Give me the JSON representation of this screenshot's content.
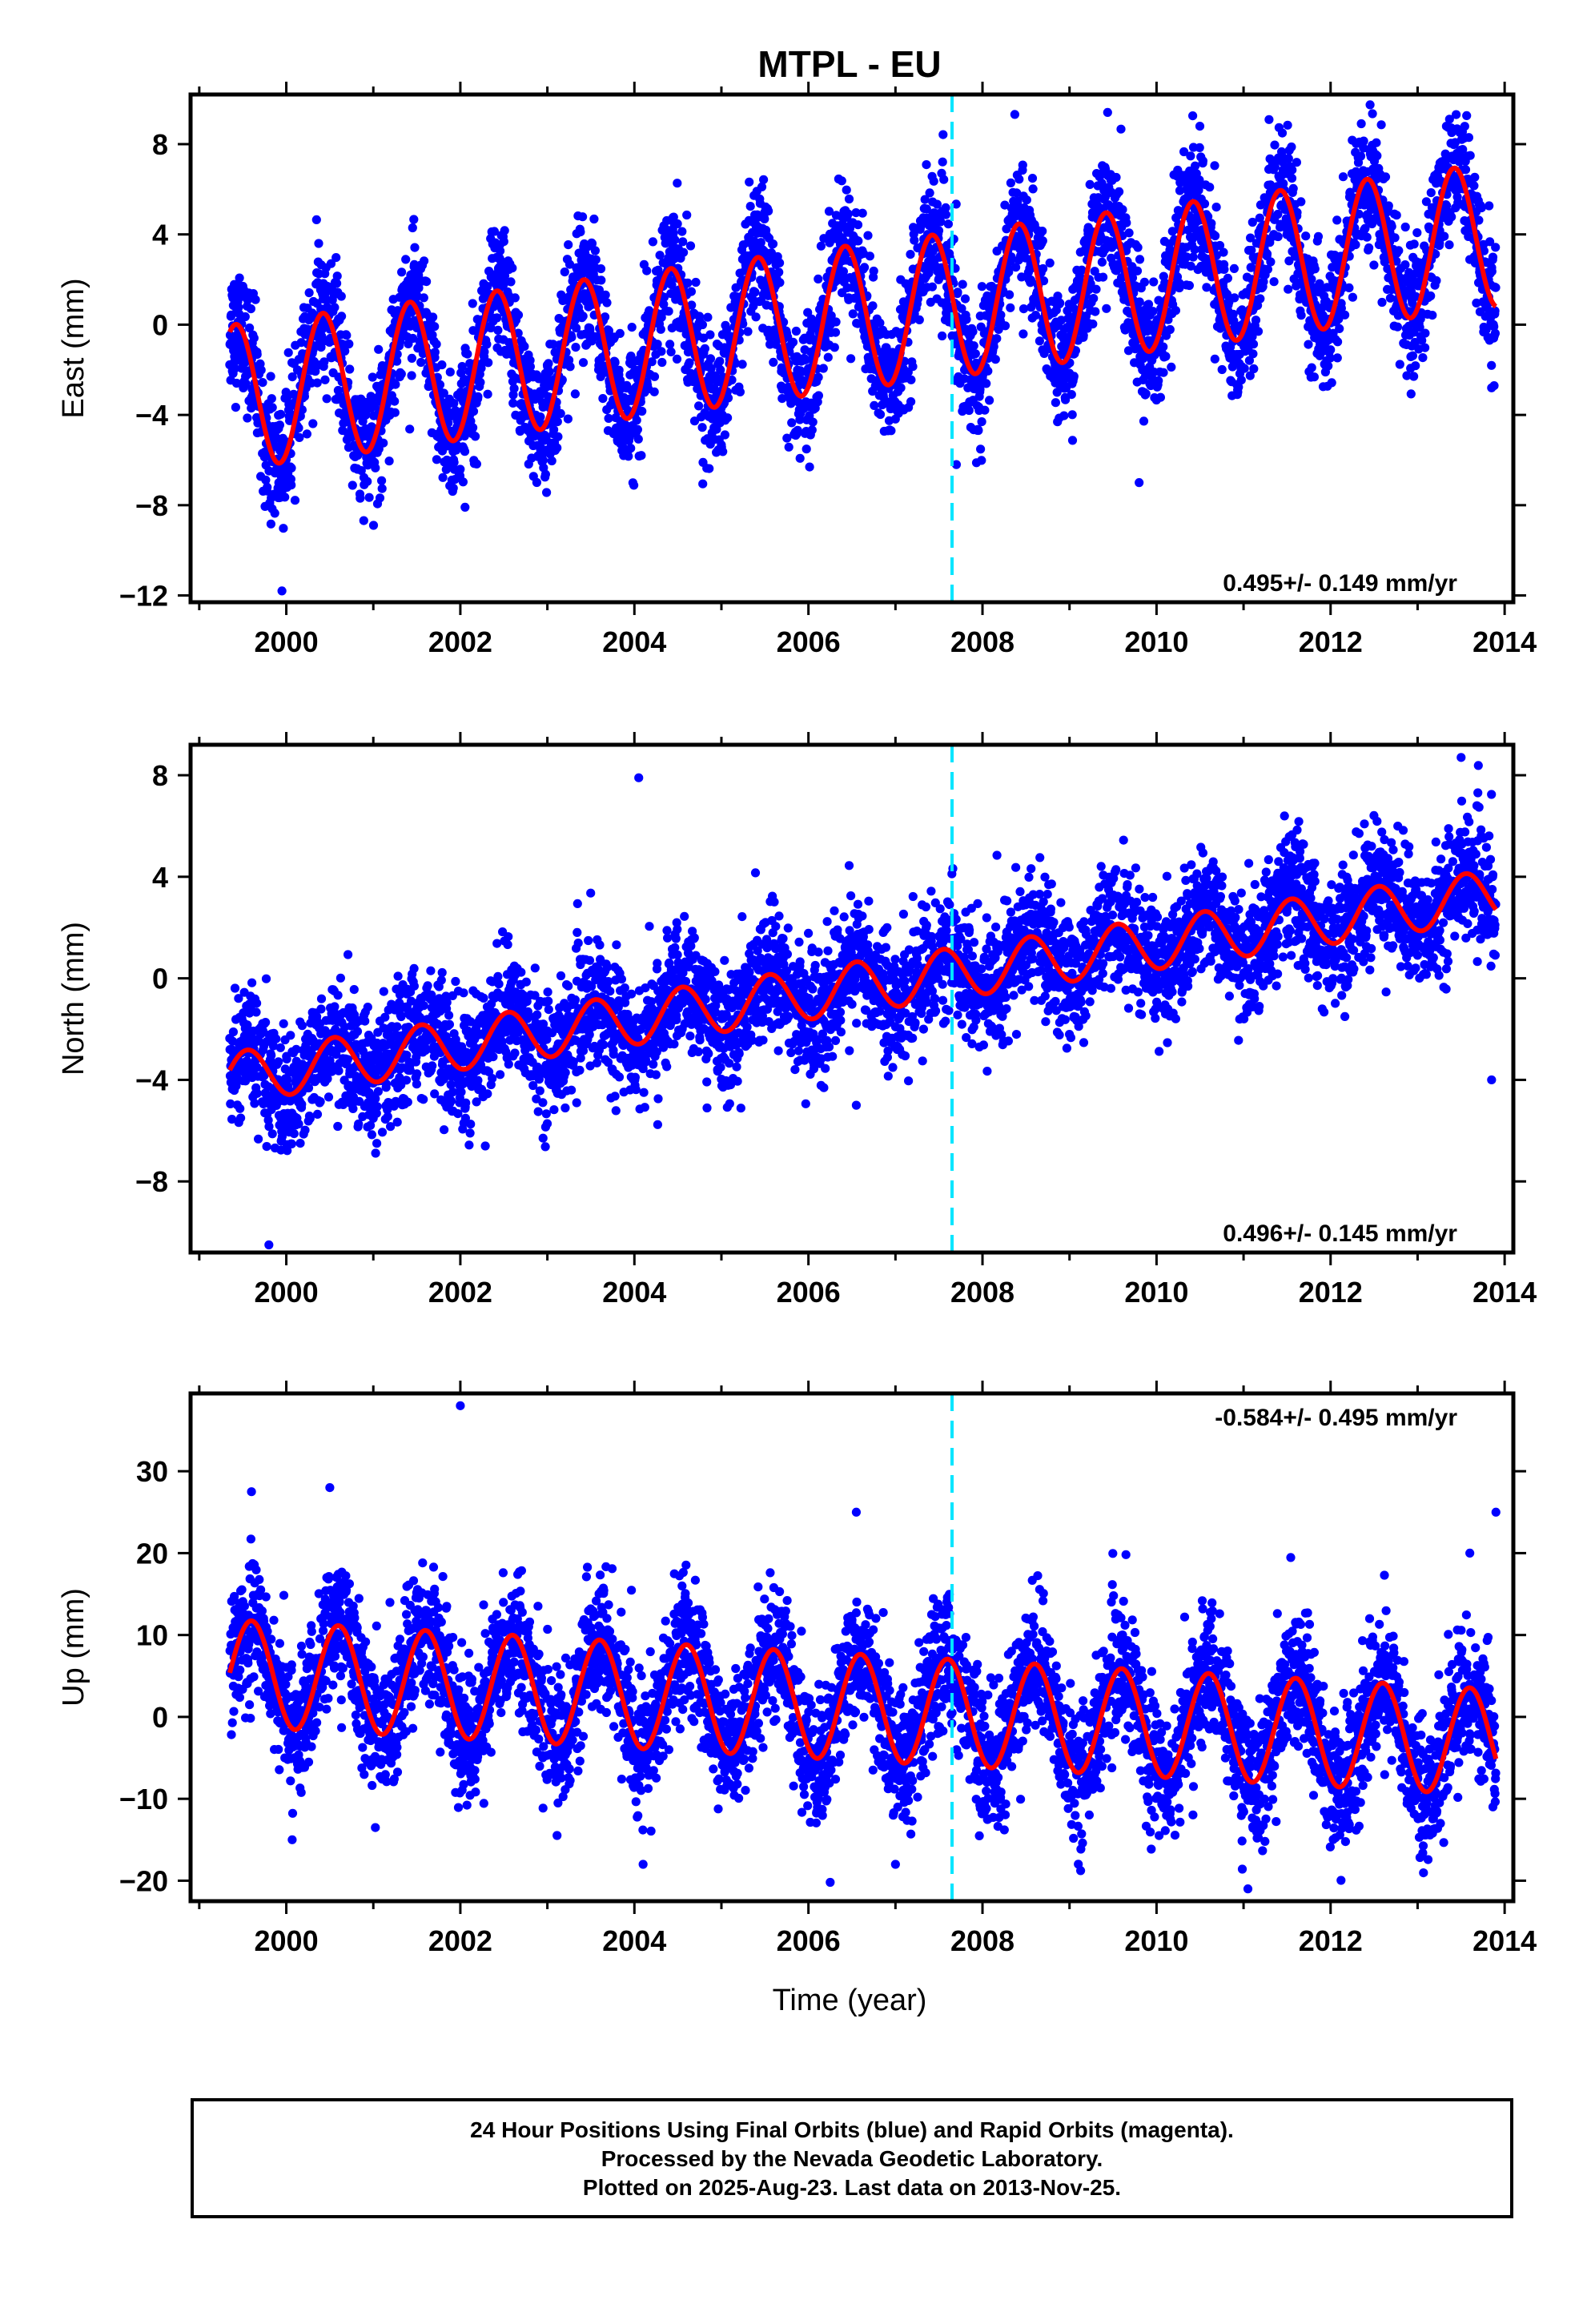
{
  "title": "MTPL - EU",
  "xlabel": "Time (year)",
  "colors": {
    "points": "#0000ff",
    "fit": "#ff0000",
    "break_line": "#00e5ff",
    "frame": "#000000"
  },
  "caption": {
    "line1": "24 Hour Positions Using Final Orbits (blue) and Rapid Orbits (magenta).",
    "line2": "Processed by the Nevada Geodetic Laboratory.",
    "line3": "Plotted on 2025-Aug-23. Last data on 2013-Nov-25."
  },
  "chart_data": [
    {
      "type": "scatter",
      "ylabel": "East (mm)",
      "xlim": [
        1998.9,
        2014.1
      ],
      "ylim": [
        -12.3,
        10.2
      ],
      "xticks": [
        2000,
        2002,
        2004,
        2006,
        2008,
        2010,
        2012,
        2014
      ],
      "yticks": [
        -12,
        -8,
        -4,
        0,
        4,
        8
      ],
      "rate_label": "0.495+/- 0.149 mm/yr",
      "break_year": 2007.65,
      "data_range": [
        1999.35,
        2013.9
      ],
      "fit": {
        "offset_2000": -2.9,
        "slope_mm_per_yr": 0.495,
        "annual_amplitude": 3.2,
        "annual_peak": 0.42,
        "scatter_sd": 1.4
      },
      "fit_curve": [
        {
          "x": 1999.4,
          "y": -0.5
        },
        {
          "x": 1999.9,
          "y": -6.1
        },
        {
          "x": 2000.4,
          "y": 0.4
        },
        {
          "x": 2000.9,
          "y": -5.6
        },
        {
          "x": 2001.4,
          "y": 0.9
        },
        {
          "x": 2001.9,
          "y": -5.1
        },
        {
          "x": 2002.4,
          "y": 1.4
        },
        {
          "x": 2002.9,
          "y": -4.6
        },
        {
          "x": 2003.4,
          "y": 1.9
        },
        {
          "x": 2003.9,
          "y": -4.1
        },
        {
          "x": 2004.4,
          "y": 2.4
        },
        {
          "x": 2004.9,
          "y": -3.6
        },
        {
          "x": 2005.4,
          "y": 2.9
        },
        {
          "x": 2005.9,
          "y": -3.1
        },
        {
          "x": 2006.4,
          "y": 3.4
        },
        {
          "x": 2006.9,
          "y": -2.6
        },
        {
          "x": 2007.4,
          "y": 3.9
        },
        {
          "x": 2007.9,
          "y": -2.3
        },
        {
          "x": 2008.4,
          "y": 4.2
        },
        {
          "x": 2008.9,
          "y": -1.8
        },
        {
          "x": 2009.4,
          "y": 4.7
        },
        {
          "x": 2009.9,
          "y": -1.3
        },
        {
          "x": 2010.4,
          "y": 5.2
        },
        {
          "x": 2010.9,
          "y": -0.8
        },
        {
          "x": 2011.4,
          "y": 5.7
        },
        {
          "x": 2011.9,
          "y": -0.3
        },
        {
          "x": 2012.4,
          "y": 6.2
        },
        {
          "x": 2012.9,
          "y": 0.1
        },
        {
          "x": 2013.4,
          "y": 6.6
        },
        {
          "x": 2013.9,
          "y": 0.4
        }
      ],
      "outliers": [
        {
          "x": 1999.95,
          "y": -11.8
        },
        {
          "x": 2009.8,
          "y": -7.0
        },
        {
          "x": 2007.7,
          "y": -6.2
        },
        {
          "x": 2013.85,
          "y": -2.8
        }
      ]
    },
    {
      "type": "scatter",
      "ylabel": "North (mm)",
      "xlim": [
        1998.9,
        2014.1
      ],
      "ylim": [
        -10.8,
        9.2
      ],
      "xticks": [
        2000,
        2002,
        2004,
        2006,
        2008,
        2010,
        2012,
        2014
      ],
      "yticks": [
        -8,
        -4,
        0,
        4,
        8
      ],
      "rate_label": "0.496+/- 0.145 mm/yr",
      "break_year": 2007.65,
      "data_range": [
        1999.35,
        2013.9
      ],
      "fit": {
        "offset_2000": -3.6,
        "slope_mm_per_yr": 0.496,
        "annual_amplitude": 1.0,
        "annual_peak": 0.55,
        "scatter_sd": 1.2
      },
      "fit_curve": [
        {
          "x": 1999.5,
          "y": -2.5
        },
        {
          "x": 2000.0,
          "y": -4.8
        },
        {
          "x": 2000.5,
          "y": -2.1
        },
        {
          "x": 2001.0,
          "y": -4.4
        },
        {
          "x": 2001.5,
          "y": -1.7
        },
        {
          "x": 2002.0,
          "y": -3.6
        },
        {
          "x": 2002.5,
          "y": -1.1
        },
        {
          "x": 2003.0,
          "y": -3.2
        },
        {
          "x": 2003.5,
          "y": -0.6
        },
        {
          "x": 2004.0,
          "y": -2.6
        },
        {
          "x": 2004.5,
          "y": -0.2
        },
        {
          "x": 2005.0,
          "y": -2.2
        },
        {
          "x": 2005.5,
          "y": 0.4
        },
        {
          "x": 2006.0,
          "y": -1.8
        },
        {
          "x": 2006.5,
          "y": 0.8
        },
        {
          "x": 2007.0,
          "y": -1.3
        },
        {
          "x": 2007.5,
          "y": 1.3
        },
        {
          "x": 2008.0,
          "y": -0.6
        },
        {
          "x": 2008.5,
          "y": 2.1
        },
        {
          "x": 2009.0,
          "y": 0.1
        },
        {
          "x": 2009.5,
          "y": 2.7
        },
        {
          "x": 2010.0,
          "y": 0.6
        },
        {
          "x": 2010.5,
          "y": 3.3
        },
        {
          "x": 2011.0,
          "y": 1.3
        },
        {
          "x": 2011.5,
          "y": 3.8
        },
        {
          "x": 2012.0,
          "y": 1.9
        },
        {
          "x": 2012.5,
          "y": 4.3
        },
        {
          "x": 2013.0,
          "y": 2.4
        },
        {
          "x": 2013.5,
          "y": 4.8
        },
        {
          "x": 2013.9,
          "y": 2.6
        }
      ],
      "outliers": [
        {
          "x": 2004.05,
          "y": 7.9
        },
        {
          "x": 2013.5,
          "y": 8.7
        },
        {
          "x": 1999.8,
          "y": -10.5
        },
        {
          "x": 2013.85,
          "y": -4.0
        },
        {
          "x": 2006.55,
          "y": -5.0
        }
      ]
    },
    {
      "type": "scatter",
      "ylabel": "Up (mm)",
      "xlim": [
        1998.9,
        2014.1
      ],
      "ylim": [
        -22.5,
        39.5
      ],
      "xticks": [
        2000,
        2002,
        2004,
        2006,
        2008,
        2010,
        2012,
        2014
      ],
      "yticks": [
        -20,
        -10,
        0,
        10,
        20,
        30
      ],
      "rate_label": "-0.584+/- 0.495 mm/yr",
      "break_year": 2007.65,
      "data_range": [
        1999.35,
        2013.9
      ],
      "fit": {
        "offset_2000": 5.0,
        "slope_mm_per_yr": -0.584,
        "annual_amplitude": 6.5,
        "annual_peak": 0.6,
        "scatter_sd": 4.0
      },
      "fit_curve": [
        {
          "x": 1999.4,
          "y": 4.0
        },
        {
          "x": 1999.6,
          "y": 11.2
        },
        {
          "x": 2000.1,
          "y": -1.3
        },
        {
          "x": 2000.6,
          "y": 10.6
        },
        {
          "x": 2001.1,
          "y": -1.8
        },
        {
          "x": 2001.6,
          "y": 10.0
        },
        {
          "x": 2002.1,
          "y": -2.4
        },
        {
          "x": 2002.6,
          "y": 9.5
        },
        {
          "x": 2003.1,
          "y": -3.0
        },
        {
          "x": 2003.6,
          "y": 8.9
        },
        {
          "x": 2004.1,
          "y": -3.6
        },
        {
          "x": 2004.6,
          "y": 8.3
        },
        {
          "x": 2005.1,
          "y": -4.2
        },
        {
          "x": 2005.6,
          "y": 7.7
        },
        {
          "x": 2006.1,
          "y": -4.8
        },
        {
          "x": 2006.6,
          "y": 7.1
        },
        {
          "x": 2007.1,
          "y": -5.4
        },
        {
          "x": 2007.6,
          "y": 6.5
        },
        {
          "x": 2008.1,
          "y": -5.9
        },
        {
          "x": 2008.6,
          "y": 6.0
        },
        {
          "x": 2009.1,
          "y": -6.5
        },
        {
          "x": 2009.6,
          "y": 5.4
        },
        {
          "x": 2010.1,
          "y": -7.1
        },
        {
          "x": 2010.6,
          "y": 4.8
        },
        {
          "x": 2011.1,
          "y": -7.7
        },
        {
          "x": 2011.6,
          "y": 4.2
        },
        {
          "x": 2012.1,
          "y": -8.3
        },
        {
          "x": 2012.6,
          "y": 3.6
        },
        {
          "x": 2013.1,
          "y": -8.9
        },
        {
          "x": 2013.6,
          "y": 3.0
        },
        {
          "x": 2013.9,
          "y": -6.5
        }
      ],
      "outliers": [
        {
          "x": 2002.0,
          "y": 38.0
        },
        {
          "x": 2000.5,
          "y": 28.0
        },
        {
          "x": 1999.6,
          "y": 27.5
        },
        {
          "x": 2006.55,
          "y": 25.0
        },
        {
          "x": 2013.9,
          "y": 25.0
        },
        {
          "x": 2013.6,
          "y": 20.0
        },
        {
          "x": 2011.05,
          "y": -21.0
        },
        {
          "x": 2006.25,
          "y": -20.2
        },
        {
          "x": 2004.1,
          "y": -18.0
        },
        {
          "x": 2007.0,
          "y": -18.0
        }
      ]
    }
  ]
}
